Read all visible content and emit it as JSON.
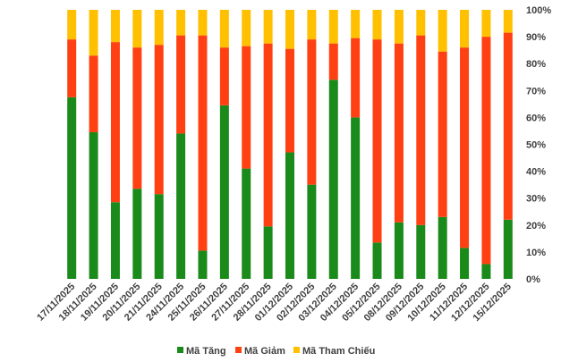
{
  "chart_data": {
    "type": "bar",
    "stacked": true,
    "normalized": true,
    "categories": [
      "17/11/2025",
      "18/11/2025",
      "19/11/2025",
      "20/11/2025",
      "21/11/2025",
      "24/11/2025",
      "25/11/2025",
      "26/11/2025",
      "27/11/2025",
      "28/11/2025",
      "01/12/2025",
      "02/12/2025",
      "03/12/2025",
      "04/12/2025",
      "05/12/2025",
      "08/12/2025",
      "09/12/2025",
      "10/12/2025",
      "11/12/2025",
      "12/12/2025",
      "15/12/2025"
    ],
    "series": [
      {
        "name": "Mã Tăng",
        "color": "#1a8a1a",
        "values": [
          67.5,
          54.5,
          28.5,
          33.5,
          31.5,
          54,
          10.5,
          64.5,
          41,
          19.5,
          47,
          35,
          74,
          60,
          13.5,
          21,
          20,
          23,
          11.5,
          5.5,
          22
        ]
      },
      {
        "name": "Mã Giảm",
        "color": "#ff4013",
        "values": [
          21.5,
          28.5,
          59.5,
          52.5,
          55.5,
          36.5,
          80,
          21.5,
          45.5,
          68,
          38.5,
          54,
          13.5,
          29.5,
          75.5,
          66.5,
          70.5,
          61.5,
          74.5,
          84.5,
          69.5
        ]
      },
      {
        "name": "Mã Tham Chiếu",
        "color": "#ffc000",
        "values": [
          11,
          17,
          12,
          14,
          13,
          9.5,
          9.5,
          14,
          13.5,
          12.5,
          14.5,
          11,
          12.5,
          10.5,
          11,
          12.5,
          9.5,
          15.5,
          14,
          10,
          8.5
        ]
      }
    ],
    "y_ticks": [
      "0%",
      "10%",
      "20%",
      "30%",
      "40%",
      "50%",
      "60%",
      "70%",
      "80%",
      "90%",
      "100%"
    ],
    "ylim": [
      0,
      100
    ],
    "y_axis_position": "right",
    "grid": false,
    "legend_position": "bottom",
    "title": "",
    "xlabel": "",
    "ylabel": ""
  }
}
